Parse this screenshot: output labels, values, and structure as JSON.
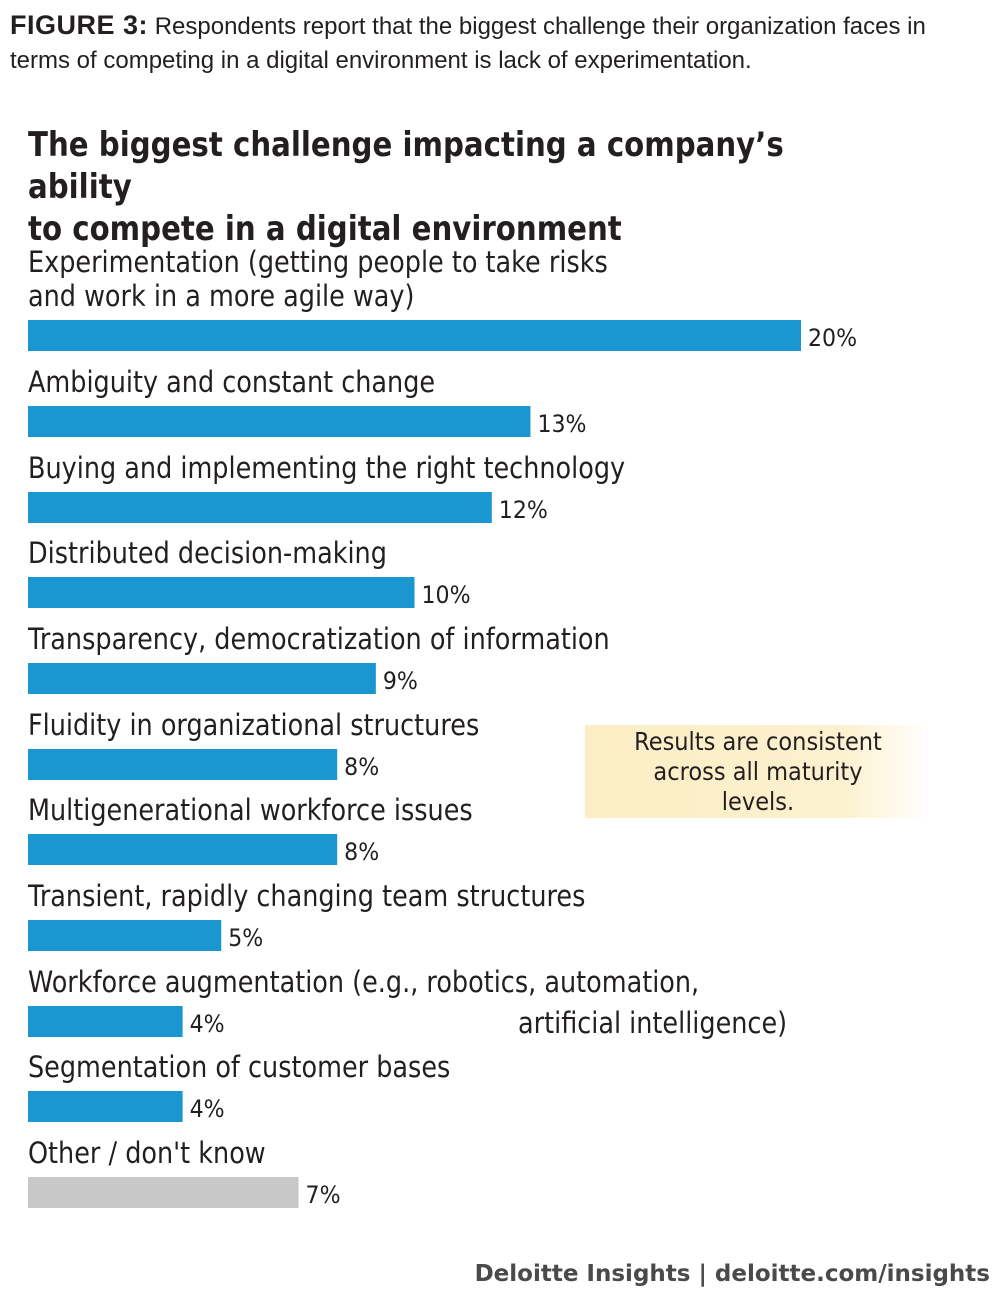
{
  "caption": {
    "label": "FIGURE 3:",
    "text": "Respondents report that the biggest challenge their organization faces in terms of competing in a digital environment is lack of experimentation."
  },
  "chart_data": {
    "type": "bar",
    "orientation": "horizontal",
    "title_line1": "The biggest challenge impacting a company’s ability",
    "title_line2": "to compete in a digital environment",
    "categories": [
      [
        "Experimentation (getting people to take risks",
        "and work in a more agile way)"
      ],
      [
        "Ambiguity and constant change"
      ],
      [
        "Buying and implementing the right technology"
      ],
      [
        "Distributed decision-making"
      ],
      [
        "Transparency, democratization of information"
      ],
      [
        "Fluidity in organizational structures"
      ],
      [
        "Multigenerational workforce issues"
      ],
      [
        "Transient, rapidly changing team structures"
      ],
      [
        "Workforce augmentation (e.g., robotics, automation,",
        "artificial intelligence)"
      ],
      [
        "Segmentation of customer bases"
      ],
      [
        "Other / don't know"
      ]
    ],
    "values": [
      20,
      13,
      12,
      10,
      9,
      8,
      8,
      5,
      4,
      4,
      7
    ],
    "value_labels": [
      "20%",
      "13%",
      "12%",
      "10%",
      "9%",
      "8%",
      "8%",
      "5%",
      "4%",
      "4%",
      "7%"
    ],
    "bar_colors": [
      "#1a96d1",
      "#1a96d1",
      "#1a96d1",
      "#1a96d1",
      "#1a96d1",
      "#1a96d1",
      "#1a96d1",
      "#1a96d1",
      "#1a96d1",
      "#1a96d1",
      "#c8c8c8"
    ],
    "unit": "%",
    "xlim": [
      0,
      20
    ]
  },
  "note": {
    "text": "Results are consistent across all maturity levels."
  },
  "footer": {
    "brand": "Deloitte Insights",
    "separator": "|",
    "url": "deloitte.com/insights"
  }
}
